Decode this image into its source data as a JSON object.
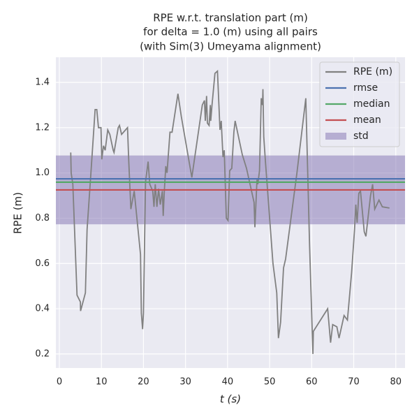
{
  "chart_data": {
    "type": "line",
    "title": [
      "RPE w.r.t. translation part (m)",
      "for delta = 1.0 (m) using all pairs",
      "(with Sim(3) Umeyama alignment)"
    ],
    "x_label": "t (s)",
    "y_label": "RPE (m)",
    "xlim": [
      -0.83,
      82.2
    ],
    "ylim": [
      0.138,
      1.511
    ],
    "xticks": [
      0,
      10,
      20,
      30,
      40,
      50,
      60,
      70,
      80
    ],
    "yticks": [
      0.2,
      0.4,
      0.6,
      0.8,
      {
        "value": 1,
        "label": "1.0"
      },
      1.2,
      1.4
    ],
    "grid": true,
    "legend": "upper right",
    "series": [
      {
        "name": "RPE (m)",
        "color": "#808080",
        "x": [
          2.7,
          2.8,
          3.2,
          4.2,
          5,
          5.05,
          6.2,
          6.6,
          7.5,
          8.5,
          8.9,
          9.3,
          9.9,
          10.1,
          10.5,
          10.9,
          11.5,
          12,
          12.8,
          13,
          14,
          14.3,
          14.8,
          16.2,
          16.5,
          17,
          17.8,
          19.3,
          19.5,
          19.8,
          20,
          20.5,
          21.1,
          21.5,
          22.2,
          22.5,
          22.8,
          23.2,
          23.6,
          24,
          24.5,
          24.7,
          25,
          25.3,
          25.6,
          26.3,
          26.8,
          28.2,
          29,
          31.5,
          34,
          34.5,
          34.7,
          35,
          35.2,
          35.6,
          35.9,
          36,
          36.3,
          37,
          37.6,
          38.2,
          38.5,
          38.9,
          39.2,
          39.7,
          40.1,
          40.5,
          41,
          41.5,
          41.8,
          43.5,
          44.5,
          46.3,
          46.5,
          47,
          47.2,
          47.6,
          48,
          48.3,
          48.4,
          48.6,
          49,
          50.8,
          51.7,
          52.1,
          52.6,
          53.3,
          53.8,
          56.5,
          58.6,
          59.5,
          60.3,
          60.4,
          63.8,
          64.5,
          65,
          66,
          66.5,
          67.7,
          68.5,
          69.5,
          70.2,
          70.5,
          70.8,
          71.2,
          71.6,
          72.5,
          72.9,
          74,
          74.5,
          75,
          76,
          76.8,
          78.5
        ],
        "values": [
          1.09,
          1.0,
          0.95,
          0.46,
          0.43,
          0.39,
          0.47,
          0.75,
          1.0,
          1.28,
          1.28,
          1.2,
          1.2,
          1.06,
          1.12,
          1.1,
          1.19,
          1.17,
          1.1,
          1.09,
          1.2,
          1.21,
          1.17,
          1.2,
          1.05,
          0.84,
          0.92,
          0.64,
          0.38,
          0.31,
          0.38,
          0.96,
          1.05,
          0.95,
          0.92,
          0.85,
          0.95,
          0.85,
          0.93,
          0.86,
          0.92,
          0.81,
          0.93,
          1.03,
          1.0,
          1.18,
          1.18,
          1.35,
          1.25,
          0.98,
          1.3,
          1.32,
          1.23,
          1.34,
          1.22,
          1.21,
          1.3,
          1.23,
          1.3,
          1.44,
          1.45,
          1.19,
          1.23,
          1.07,
          1.1,
          0.8,
          0.79,
          1.01,
          1.02,
          1.18,
          1.23,
          1.08,
          1.02,
          0.87,
          0.76,
          0.97,
          0.95,
          1.01,
          1.33,
          1.3,
          1.37,
          1.16,
          1.05,
          0.6,
          0.47,
          0.27,
          0.34,
          0.58,
          0.62,
          1.0,
          1.33,
          0.68,
          0.2,
          0.3,
          0.4,
          0.25,
          0.33,
          0.32,
          0.27,
          0.37,
          0.35,
          0.56,
          0.75,
          0.86,
          0.78,
          0.91,
          0.92,
          0.74,
          0.72,
          0.9,
          0.95,
          0.84,
          0.88,
          0.85,
          0.845
        ]
      }
    ],
    "reference_lines": [
      {
        "name": "rmse",
        "color": "#4c72b0",
        "value": 0.974
      },
      {
        "name": "median",
        "color": "#55a868",
        "value": 0.959
      },
      {
        "name": "mean",
        "color": "#c44e52",
        "value": 0.925
      }
    ],
    "band": {
      "name": "std",
      "color": "#8172b2",
      "value": 0.152
    }
  }
}
